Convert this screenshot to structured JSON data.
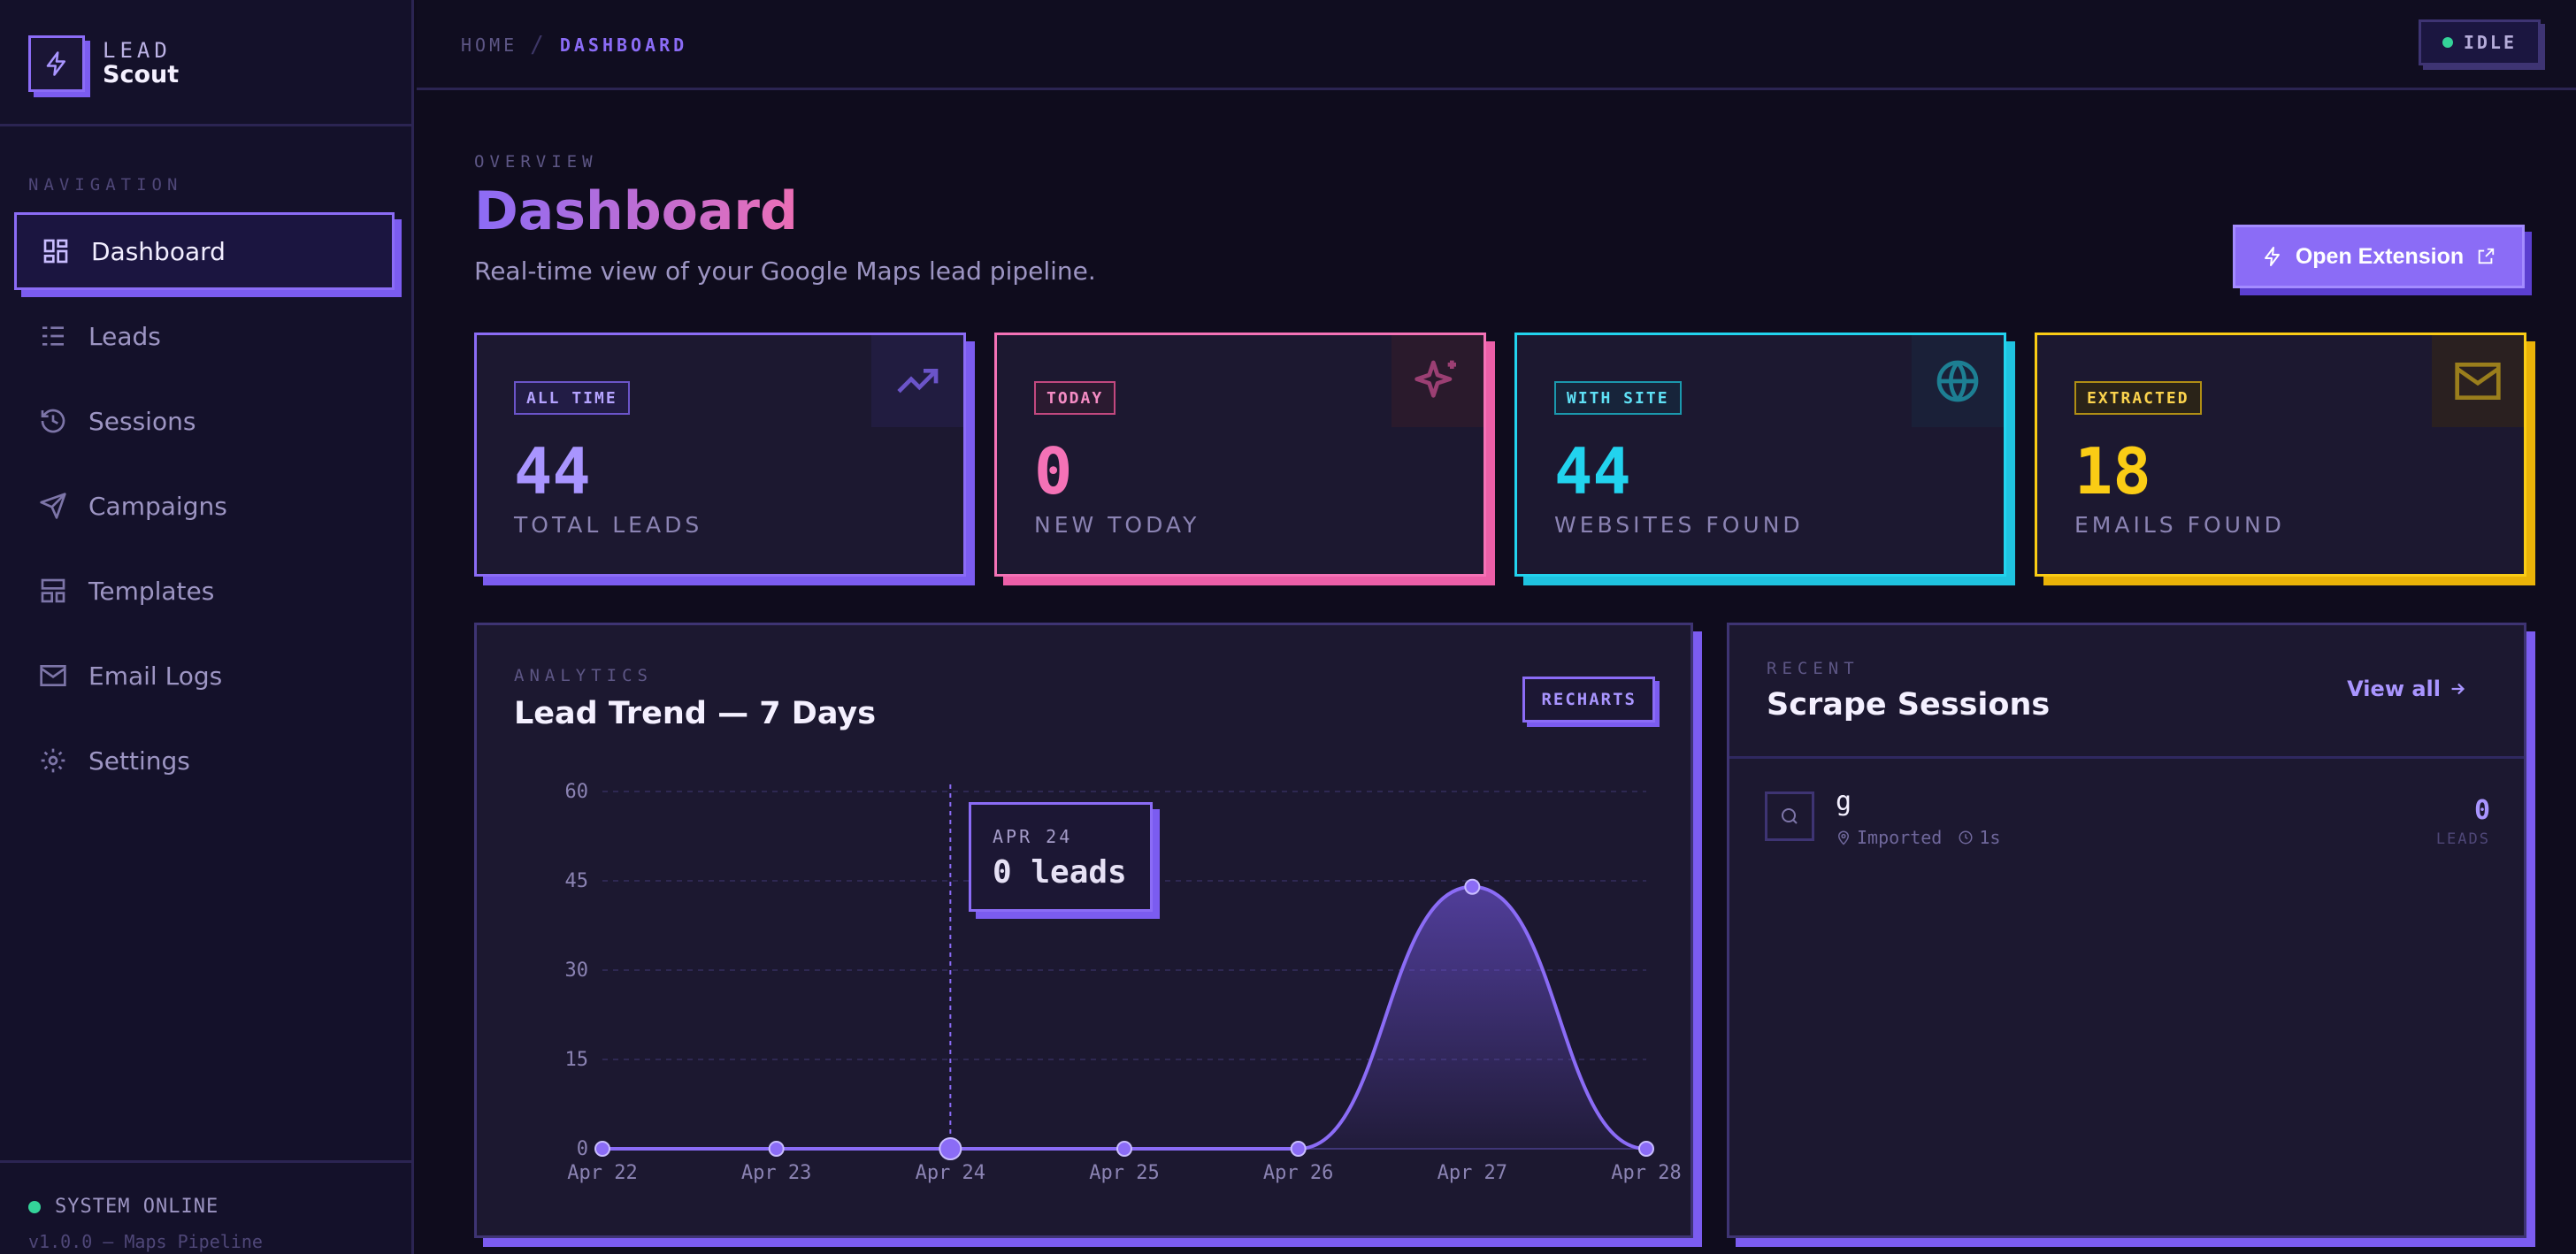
{
  "brand": {
    "line1": "LEAD",
    "line2": "Scout"
  },
  "nav": {
    "heading": "NAVIGATION",
    "items": [
      {
        "label": "Dashboard",
        "icon": "dashboard-icon",
        "active": true
      },
      {
        "label": "Leads",
        "icon": "list-icon",
        "active": false
      },
      {
        "label": "Sessions",
        "icon": "history-icon",
        "active": false
      },
      {
        "label": "Campaigns",
        "icon": "send-icon",
        "active": false
      },
      {
        "label": "Templates",
        "icon": "layout-icon",
        "active": false
      },
      {
        "label": "Email Logs",
        "icon": "mail-icon",
        "active": false
      },
      {
        "label": "Settings",
        "icon": "gear-icon",
        "active": false
      }
    ]
  },
  "footer": {
    "status": "SYSTEM ONLINE",
    "version": "v1.0.0 — Maps Pipeline"
  },
  "breadcrumb": {
    "home": "HOME",
    "separator": "/",
    "current": "DASHBOARD"
  },
  "status_badge": "IDLE",
  "header": {
    "overline": "OVERVIEW",
    "title": "Dashboard",
    "subtitle": "Real-time view of your Google Maps lead pipeline.",
    "open_extension": "Open Extension"
  },
  "stats": [
    {
      "badge": "ALL TIME",
      "value": "44",
      "label": "TOTAL LEADS",
      "color": "#8b6cf6",
      "icon": "trending-up-icon"
    },
    {
      "badge": "TODAY",
      "value": "0",
      "label": "NEW TODAY",
      "color": "#f472b6",
      "icon": "sparkles-icon"
    },
    {
      "badge": "WITH SITE",
      "value": "44",
      "label": "WEBSITES FOUND",
      "color": "#22d3ee",
      "icon": "globe-icon"
    },
    {
      "badge": "EXTRACTED",
      "value": "18",
      "label": "EMAILS FOUND",
      "color": "#facc15",
      "icon": "mail-icon"
    }
  ],
  "chart": {
    "overline": "ANALYTICS",
    "title": "Lead Trend — 7 Days",
    "library_badge": "RECHARTS",
    "tooltip": {
      "date": "APR 24",
      "value": "0 leads"
    }
  },
  "chart_data": {
    "type": "area",
    "categories": [
      "Apr 22",
      "Apr 23",
      "Apr 24",
      "Apr 25",
      "Apr 26",
      "Apr 27",
      "Apr 28"
    ],
    "values": [
      0,
      0,
      0,
      0,
      0,
      44,
      0
    ],
    "yticks": [
      0,
      15,
      30,
      45,
      60
    ],
    "ylim": [
      0,
      60
    ],
    "color": "#8b6cf6",
    "grid": true,
    "active_index": 2
  },
  "sessions": {
    "overline": "RECENT",
    "title": "Scrape Sessions",
    "view_all": "View all",
    "items": [
      {
        "name": "g",
        "source": "Imported",
        "duration": "1s",
        "count": "0",
        "count_label": "LEADS"
      }
    ]
  }
}
